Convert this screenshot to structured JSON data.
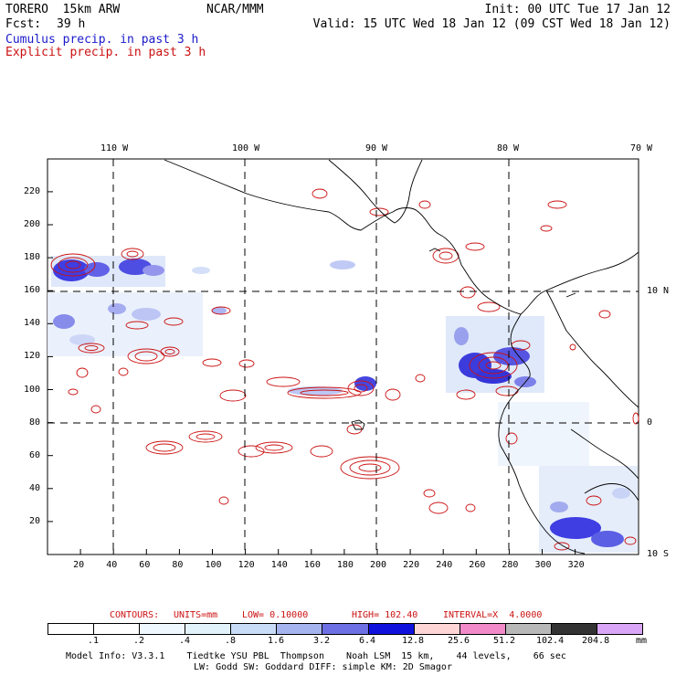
{
  "header": {
    "model": "TORERO  15km ARW",
    "org": "NCAR/MMM",
    "init": "Init: 00 UTC Tue 17 Jan 12",
    "fcst_label": "Fcst:",
    "fcst_value": "39 h",
    "valid": "Valid: 15 UTC Wed 18 Jan 12 (09 CST Wed 18 Jan 12)",
    "cumulus": "Cumulus precip. in past 3 h",
    "explicit": "Explicit precip. in past 3 h"
  },
  "map": {
    "lon_labels": [
      "110 W",
      "100 W",
      "90 W",
      "80 W",
      "70 W"
    ],
    "lat_labels": [
      "10 N",
      "0",
      "10 S"
    ],
    "x_ticks": [
      "20",
      "40",
      "60",
      "80",
      "100",
      "120",
      "140",
      "160",
      "180",
      "200",
      "220",
      "240",
      "260",
      "280",
      "300",
      "320"
    ],
    "y_ticks": [
      "20",
      "40",
      "60",
      "80",
      "100",
      "120",
      "140",
      "160",
      "180",
      "200",
      "220"
    ]
  },
  "contours": {
    "label": "CONTOURS:",
    "units": "UNITS=mm",
    "low": "LOW= 0.10000",
    "high": "HIGH= 102.40",
    "interval": "INTERVAL=X  4.0000",
    "color": "#cc1111"
  },
  "colorbar": {
    "labels": [
      ".1",
      ".2",
      ".4",
      ".8",
      "1.6",
      "3.2",
      "6.4",
      "12.8",
      "25.6",
      "51.2",
      "102.4",
      "204.8"
    ],
    "unit": "mm",
    "colors": [
      "#ffffff",
      "#ffffff",
      "#f0f8ff",
      "#e2f2fb",
      "#c8dcf7",
      "#a5b4ef",
      "#6c70e3",
      "#1111dd",
      "#ffd6d6",
      "#f08ac8",
      "#b8b8b8",
      "#333333",
      "#d8a6f5"
    ]
  },
  "footer": {
    "line1": "Model Info: V3.3.1    Tiedtke YSU PBL  Thompson    Noah LSM  15 km,    44 levels,    66 sec",
    "line2": "LW: Godd SW: Goddard DIFF: simple KM: 2D Smagor"
  }
}
